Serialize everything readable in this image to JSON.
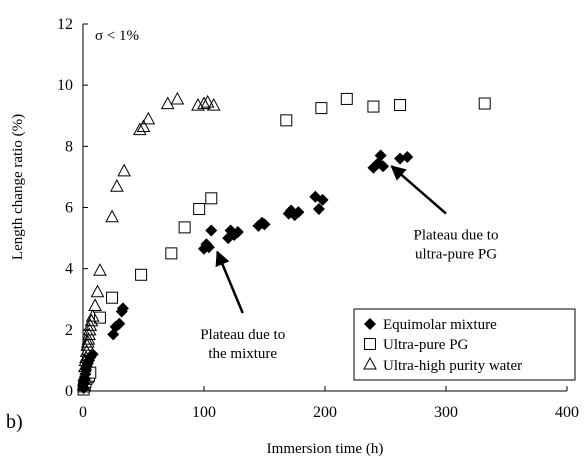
{
  "chart_data": {
    "type": "scatter",
    "panel_label": "b)",
    "annotation_sigma": "σ < 1%",
    "xlabel": "Immersion time (h)",
    "ylabel": "Length change ratio (%)",
    "xlim": [
      0,
      400
    ],
    "ylim": [
      0,
      12
    ],
    "xticks": [
      "0",
      "100",
      "200",
      "300",
      "400"
    ],
    "yticks": [
      "0",
      "2",
      "4",
      "6",
      "8",
      "10",
      "12"
    ],
    "grid": false,
    "legend_position": "bottom-right",
    "series": [
      {
        "name": "Equimolar mixture",
        "marker": "diamond-filled",
        "points": [
          [
            0.5,
            0.1
          ],
          [
            1,
            0.25
          ],
          [
            1.5,
            0.4
          ],
          [
            2,
            0.55
          ],
          [
            2.5,
            0.7
          ],
          [
            3,
            0.8
          ],
          [
            4,
            0.9
          ],
          [
            5,
            1.0
          ],
          [
            6,
            1.1
          ],
          [
            8,
            1.2
          ],
          [
            25,
            1.85
          ],
          [
            27,
            2.1
          ],
          [
            30,
            2.2
          ],
          [
            32,
            2.6
          ],
          [
            33,
            2.7
          ],
          [
            100,
            4.65
          ],
          [
            102,
            4.8
          ],
          [
            104,
            4.7
          ],
          [
            106,
            5.25
          ],
          [
            120,
            5.0
          ],
          [
            122,
            5.25
          ],
          [
            125,
            5.1
          ],
          [
            128,
            5.2
          ],
          [
            145,
            5.4
          ],
          [
            148,
            5.5
          ],
          [
            150,
            5.45
          ],
          [
            170,
            5.8
          ],
          [
            172,
            5.9
          ],
          [
            175,
            5.75
          ],
          [
            178,
            5.85
          ],
          [
            192,
            6.35
          ],
          [
            195,
            5.95
          ],
          [
            198,
            6.25
          ],
          [
            240,
            7.3
          ],
          [
            244,
            7.45
          ],
          [
            246,
            7.7
          ],
          [
            248,
            7.35
          ],
          [
            262,
            7.6
          ],
          [
            268,
            7.65
          ]
        ]
      },
      {
        "name": "Ultra-pure PG",
        "marker": "square-open",
        "points": [
          [
            0.5,
            0.05
          ],
          [
            1,
            0.15
          ],
          [
            1.5,
            0.2
          ],
          [
            2,
            0.3
          ],
          [
            3,
            0.4
          ],
          [
            4,
            0.45
          ],
          [
            5,
            0.5
          ],
          [
            6,
            0.6
          ],
          [
            14,
            2.4
          ],
          [
            24,
            3.05
          ],
          [
            48,
            3.8
          ],
          [
            73,
            4.5
          ],
          [
            84,
            5.35
          ],
          [
            96,
            5.95
          ],
          [
            106,
            6.3
          ],
          [
            168,
            8.85
          ],
          [
            197,
            9.25
          ],
          [
            218,
            9.55
          ],
          [
            240,
            9.3
          ],
          [
            262,
            9.35
          ],
          [
            332,
            9.4
          ]
        ]
      },
      {
        "name": "Ultra-high purity water",
        "marker": "triangle-open",
        "points": [
          [
            0.5,
            0.2
          ],
          [
            1,
            0.5
          ],
          [
            1.5,
            0.8
          ],
          [
            2,
            1.0
          ],
          [
            2.5,
            1.1
          ],
          [
            3,
            1.3
          ],
          [
            3.5,
            1.5
          ],
          [
            4,
            1.6
          ],
          [
            4.5,
            1.7
          ],
          [
            5,
            1.85
          ],
          [
            5.5,
            2.0
          ],
          [
            6,
            2.15
          ],
          [
            7,
            2.3
          ],
          [
            8,
            2.45
          ],
          [
            10,
            2.8
          ],
          [
            12,
            3.25
          ],
          [
            14,
            3.95
          ],
          [
            24,
            5.7
          ],
          [
            28,
            6.7
          ],
          [
            34,
            7.2
          ],
          [
            47,
            8.55
          ],
          [
            50,
            8.65
          ],
          [
            54,
            8.9
          ],
          [
            70,
            9.4
          ],
          [
            78,
            9.55
          ],
          [
            95,
            9.35
          ],
          [
            100,
            9.4
          ],
          [
            103,
            9.45
          ],
          [
            108,
            9.35
          ]
        ]
      }
    ],
    "annotations": [
      {
        "lines": [
          "Plateau due to",
          "the mixture"
        ],
        "arrow_from": [
          132,
          2.55
        ],
        "arrow_to": [
          111,
          4.55
        ]
      },
      {
        "lines": [
          "Plateau due to",
          "ultra-pure PG"
        ],
        "arrow_from": [
          300,
          5.8
        ],
        "arrow_to": [
          255,
          7.35
        ]
      }
    ]
  }
}
